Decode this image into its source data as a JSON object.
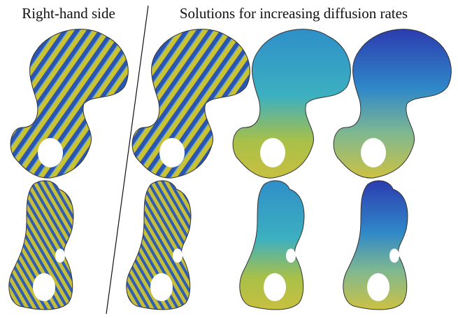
{
  "header": {
    "left_caption": "Right-hand side",
    "right_caption": "Solutions for increasing diffusion rates"
  }
}
